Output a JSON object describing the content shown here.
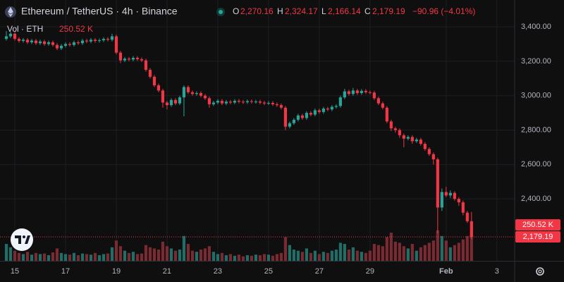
{
  "chart_data": {
    "type": "candlestick",
    "title": "Ethereum / TetherUS · 4h · Binance",
    "ohlc_letters": [
      "O",
      "H",
      "L",
      "C"
    ],
    "last_labels": {
      "open": "2,270.16",
      "high": "2,324.17",
      "low": "2,166.14",
      "close": "2,179.19",
      "change": "−90.96 (−4.01%)"
    },
    "volume_title": "Vol · ETH",
    "volume_label": "250.52 K",
    "up_color": "#26a69a",
    "down_color": "#f23645",
    "volume_up_color": "#1f6f68",
    "volume_down_color": "#7a2a31",
    "grid": true,
    "ylim": [
      2040,
      3556
    ],
    "yticks": [
      {
        "value": 2400,
        "label": "2,400.00"
      },
      {
        "value": 2600,
        "label": "2,600.00"
      },
      {
        "value": 2800,
        "label": "2,800.00"
      },
      {
        "value": 3000,
        "label": "3,000.00"
      },
      {
        "value": 3200,
        "label": "3,200.00"
      },
      {
        "value": 3400,
        "label": "3,400.00"
      }
    ],
    "volume_lim": [
      0,
      625000
    ],
    "xlim": [
      -1.5,
      120.2
    ],
    "xticks": [
      {
        "value": 2,
        "label": "15"
      },
      {
        "value": 14,
        "label": "17"
      },
      {
        "value": 26,
        "label": "19"
      },
      {
        "value": 38,
        "label": "21"
      },
      {
        "value": 50,
        "label": "23"
      },
      {
        "value": 62,
        "label": "25"
      },
      {
        "value": 74,
        "label": "27"
      },
      {
        "value": 86,
        "label": "29"
      },
      {
        "value": 104,
        "label": "Feb"
      },
      {
        "value": 116,
        "label": "3"
      }
    ],
    "open": [
      3330,
      3345,
      3360,
      3330,
      3318,
      3325,
      3310,
      3320,
      3305,
      3315,
      3300,
      3310,
      3295,
      3275,
      3290,
      3300,
      3295,
      3310,
      3305,
      3320,
      3315,
      3325,
      3318,
      3322,
      3330,
      3325,
      3345,
      3250,
      3205,
      3215,
      3210,
      3220,
      3212,
      3205,
      3150,
      3110,
      3060,
      3030,
      2960,
      2945,
      2975,
      2955,
      2990,
      3050,
      3020,
      3010,
      3015,
      3000,
      2985,
      2950,
      2960,
      2970,
      2955,
      2965,
      2960,
      2970,
      2965,
      2962,
      2968,
      2964,
      2966,
      2960,
      2955,
      2958,
      2950,
      2945,
      2930,
      2820,
      2840,
      2860,
      2885,
      2870,
      2900,
      2890,
      2915,
      2905,
      2925,
      2920,
      2935,
      2940,
      2990,
      3025,
      3010,
      3030,
      3015,
      3028,
      3020,
      3018,
      2985,
      2955,
      2930,
      2850,
      2810,
      2800,
      2770,
      2750,
      2760,
      2735,
      2745,
      2720,
      2690,
      2660,
      2630,
      2350,
      2440,
      2420,
      2435,
      2400,
      2380,
      2320,
      2270.16
    ],
    "high": [
      3375,
      3370,
      3370,
      3340,
      3335,
      3335,
      3330,
      3330,
      3325,
      3325,
      3320,
      3320,
      3305,
      3300,
      3310,
      3310,
      3320,
      3320,
      3330,
      3330,
      3335,
      3335,
      3332,
      3340,
      3340,
      3360,
      3355,
      3260,
      3225,
      3225,
      3230,
      3230,
      3222,
      3215,
      3160,
      3120,
      3070,
      3040,
      2970,
      2985,
      2985,
      3000,
      3060,
      3060,
      3030,
      3025,
      3025,
      3010,
      2995,
      2970,
      2980,
      2980,
      2975,
      2975,
      2980,
      2980,
      2975,
      2978,
      2978,
      2976,
      2976,
      2970,
      2968,
      2968,
      2960,
      2955,
      2940,
      2850,
      2870,
      2895,
      2895,
      2910,
      2910,
      2925,
      2925,
      2935,
      2935,
      2945,
      2950,
      3000,
      3040,
      3035,
      3045,
      3040,
      3038,
      3038,
      3030,
      3028,
      2995,
      2965,
      2940,
      2860,
      2820,
      2810,
      2780,
      2770,
      2770,
      2755,
      2755,
      2730,
      2700,
      2670,
      2640,
      2460,
      2470,
      2450,
      2445,
      2410,
      2390,
      2330,
      2324.17
    ],
    "low": [
      3320,
      3335,
      3320,
      3308,
      3308,
      3300,
      3300,
      3295,
      3295,
      3290,
      3290,
      3285,
      3265,
      3265,
      3280,
      3285,
      3285,
      3295,
      3295,
      3305,
      3305,
      3308,
      3308,
      3312,
      3315,
      3315,
      3240,
      3190,
      3195,
      3200,
      3200,
      3202,
      3195,
      3140,
      3100,
      3050,
      3020,
      2930,
      2920,
      2935,
      2945,
      2945,
      2880,
      3010,
      3000,
      3000,
      2990,
      2975,
      2930,
      2940,
      2950,
      2945,
      2945,
      2950,
      2950,
      2955,
      2952,
      2952,
      2954,
      2954,
      2950,
      2945,
      2945,
      2940,
      2935,
      2920,
      2800,
      2810,
      2830,
      2850,
      2860,
      2860,
      2880,
      2880,
      2895,
      2895,
      2910,
      2910,
      2925,
      2930,
      2980,
      3000,
      3000,
      3005,
      3005,
      3010,
      3008,
      2975,
      2945,
      2920,
      2840,
      2795,
      2785,
      2755,
      2700,
      2740,
      2720,
      2725,
      2710,
      2680,
      2650,
      2600,
      2200,
      2330,
      2410,
      2405,
      2390,
      2360,
      2305,
      2260,
      2166.14
    ],
    "close": [
      3345,
      3360,
      3330,
      3318,
      3325,
      3310,
      3320,
      3305,
      3315,
      3300,
      3310,
      3295,
      3275,
      3290,
      3300,
      3295,
      3310,
      3305,
      3320,
      3315,
      3325,
      3318,
      3322,
      3330,
      3325,
      3345,
      3250,
      3205,
      3215,
      3210,
      3220,
      3212,
      3205,
      3150,
      3110,
      3060,
      3030,
      2960,
      2945,
      2975,
      2955,
      2990,
      3050,
      3020,
      3010,
      3015,
      3000,
      2985,
      2950,
      2960,
      2970,
      2955,
      2965,
      2960,
      2970,
      2965,
      2962,
      2968,
      2964,
      2966,
      2960,
      2955,
      2958,
      2950,
      2945,
      2930,
      2820,
      2840,
      2860,
      2885,
      2870,
      2900,
      2890,
      2915,
      2905,
      2925,
      2920,
      2935,
      2940,
      2990,
      3025,
      3010,
      3030,
      3015,
      3028,
      3020,
      3018,
      2985,
      2955,
      2930,
      2850,
      2810,
      2800,
      2770,
      2750,
      2760,
      2735,
      2745,
      2720,
      2690,
      2660,
      2630,
      2350,
      2440,
      2420,
      2435,
      2400,
      2380,
      2320,
      2270.16,
      2179.19
    ],
    "volume": [
      150000,
      120000,
      90000,
      70000,
      60000,
      80000,
      55000,
      70000,
      60000,
      65000,
      50000,
      75000,
      110000,
      70000,
      60000,
      55000,
      70000,
      50000,
      65000,
      60000,
      55000,
      70000,
      50000,
      60000,
      65000,
      120000,
      180000,
      130000,
      90000,
      70000,
      80000,
      60000,
      65000,
      140000,
      120000,
      110000,
      100000,
      170000,
      130000,
      110000,
      90000,
      100000,
      220000,
      150000,
      90000,
      80000,
      100000,
      110000,
      130000,
      80000,
      60000,
      70000,
      50000,
      60000,
      45000,
      55000,
      40000,
      50000,
      45000,
      55000,
      50000,
      60000,
      55000,
      45000,
      60000,
      70000,
      210000,
      140000,
      100000,
      90000,
      80000,
      110000,
      70000,
      90000,
      60000,
      80000,
      70000,
      90000,
      100000,
      160000,
      150000,
      100000,
      120000,
      90000,
      80000,
      70000,
      90000,
      150000,
      140000,
      130000,
      210000,
      250000,
      170000,
      160000,
      130000,
      110000,
      150000,
      90000,
      120000,
      140000,
      160000,
      180000,
      270000,
      220000,
      180000,
      120000,
      140000,
      160000,
      190000,
      220000,
      250520
    ]
  }
}
